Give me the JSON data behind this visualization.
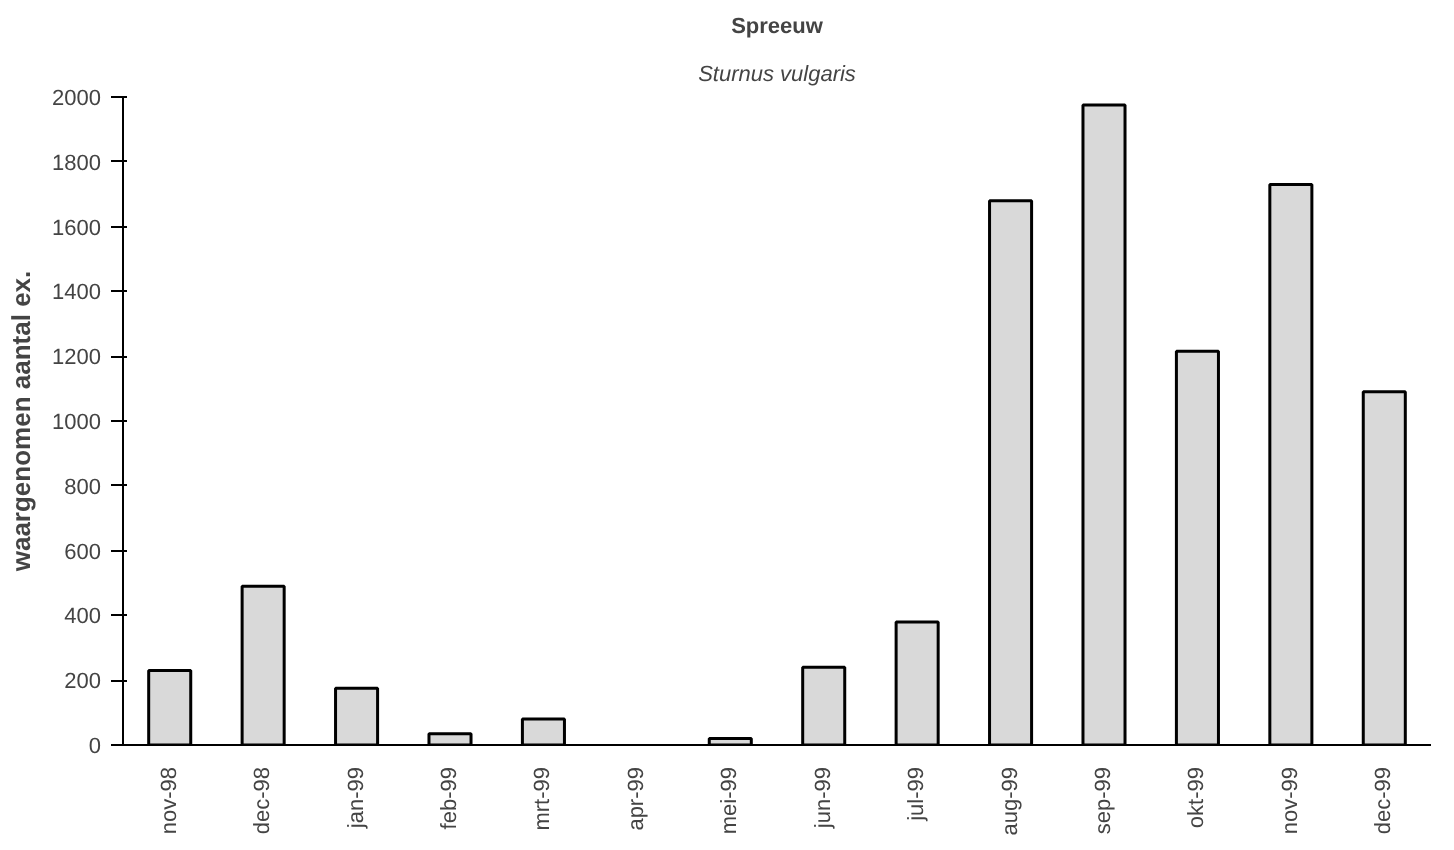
{
  "chart_data": {
    "type": "bar",
    "title": "Spreeuw",
    "subtitle": "Sturnus vulgaris",
    "ylabel": "waargenomen aantal ex.",
    "categories": [
      "nov-98",
      "dec-98",
      "jan-99",
      "feb-99",
      "mrt-99",
      "apr-99",
      "mei-99",
      "jun-99",
      "jul-99",
      "aug-99",
      "sep-99",
      "okt-99",
      "nov-99",
      "dec-99"
    ],
    "values": [
      230,
      490,
      175,
      35,
      80,
      0,
      20,
      240,
      380,
      1680,
      1975,
      1215,
      1730,
      1090
    ],
    "color": "#d9d9d9",
    "ylim": [
      0,
      2000
    ],
    "yticks": [
      0,
      200,
      400,
      600,
      800,
      1000,
      1200,
      1400,
      1600,
      1800,
      2000
    ],
    "grid": false
  }
}
